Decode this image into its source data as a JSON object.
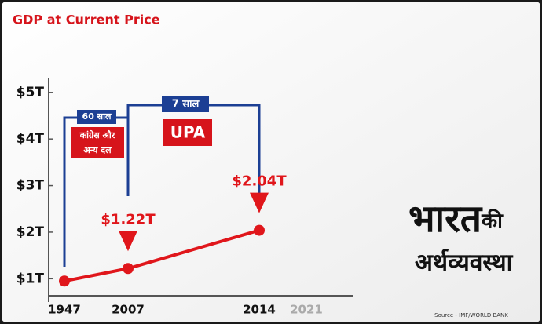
{
  "chart_data": {
    "type": "line",
    "title": "GDP at Current Price",
    "categories": [
      "1947",
      "2007",
      "2014",
      "2021"
    ],
    "series": [
      {
        "name": "GDP",
        "color": "#e0161b",
        "values": [
          0.95,
          1.22,
          2.04,
          null
        ],
        "value_labels": [
          null,
          "$1.22T",
          "$2.04T",
          null
        ]
      }
    ],
    "ylim": [
      0.5,
      5.3
    ],
    "yticks": [
      {
        "value": 1,
        "label": "$1T"
      },
      {
        "value": 2,
        "label": "$2T"
      },
      {
        "value": 3,
        "label": "$3T"
      },
      {
        "value": 4,
        "label": "$4T"
      },
      {
        "value": 5,
        "label": "$5T"
      }
    ],
    "annotations": {
      "span1": "60 साल",
      "party1": [
        "कांग्रेस और",
        "अन्य दल"
      ],
      "span2": "7 साल",
      "party2": "UPA"
    },
    "source": "Source - IMF/WORLD BANK"
  },
  "branding": {
    "word1": "भारत",
    "word2": "की",
    "word3": "अर्थव्यवस्था"
  }
}
